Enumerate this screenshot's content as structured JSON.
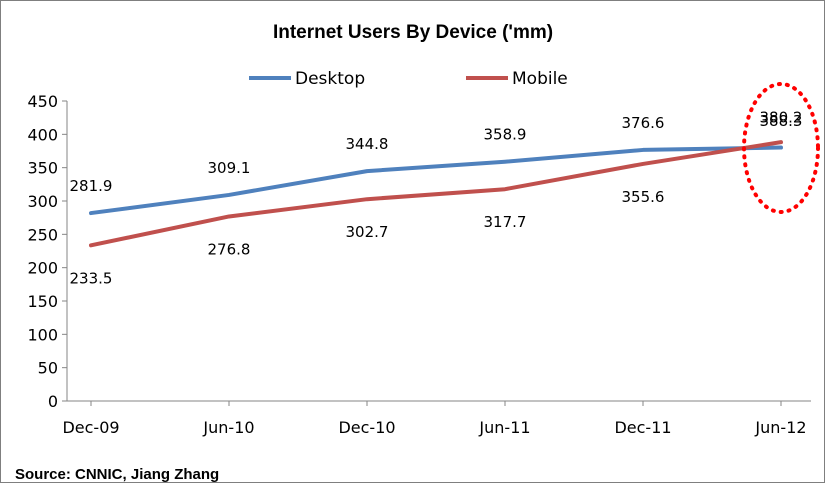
{
  "chart_data": {
    "type": "line",
    "title": "Internet Users By Device ('mm)",
    "categories": [
      "Dec-09",
      "Jun-10",
      "Dec-10",
      "Jun-11",
      "Dec-11",
      "Jun-12"
    ],
    "ylim": [
      0,
      450
    ],
    "yticks": [
      "0",
      "50",
      "100",
      "150",
      "200",
      "250",
      "300",
      "350",
      "400",
      "450"
    ],
    "legend_position": "top",
    "series": [
      {
        "name": "Desktop",
        "color": "#4f81bd",
        "values": [
          281.9,
          309.1,
          344.8,
          358.9,
          376.6,
          380.2
        ],
        "labels": [
          "281.9",
          "309.1",
          "344.8",
          "358.9",
          "376.6",
          "380.2"
        ]
      },
      {
        "name": "Mobile",
        "color": "#c0504d",
        "values": [
          233.5,
          276.8,
          302.7,
          317.7,
          355.6,
          388.3
        ],
        "labels": [
          "233.5",
          "276.8",
          "302.7",
          "317.7",
          "355.6",
          "388.3"
        ]
      }
    ],
    "annotation": {
      "shape": "dotted-ellipse",
      "color": "#ff0000",
      "category": "Jun-12"
    },
    "source": "Source: CNNIC, Jiang Zhang"
  }
}
